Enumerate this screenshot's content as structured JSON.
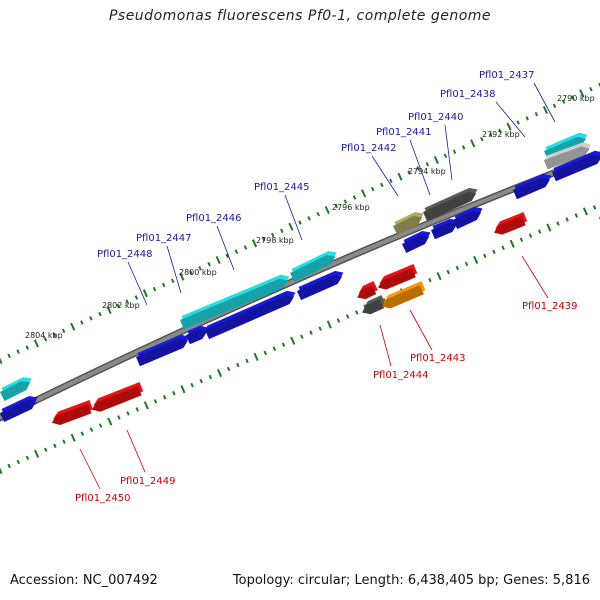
{
  "header": {
    "title": "Pseudomonas fluorescens Pf0-1, complete genome"
  },
  "footer": {
    "accession": "Accession: NC_007492",
    "summary": "Topology: circular; Length: 6,438,405 bp; Genes: 5,816"
  },
  "colors": {
    "backbone": "#8a8a8a",
    "forward_label": "#1a1aa6",
    "reverse_label": "#cc0000",
    "tick": "#1f7a1f",
    "blue": "#1a1add",
    "cyan": "#22e0e8",
    "red": "#ee1111",
    "gray": "#5a5a5a",
    "olive": "#b0ac66",
    "orange": "#ff9900",
    "lightgray": "#cfcfcf"
  },
  "kbp_labels": [
    "2790 kbp",
    "2792 kbp",
    "2794 kbp",
    "2796 kbp",
    "2798 kbp",
    "2800 kbp",
    "2802 kbp",
    "2804 kbp"
  ],
  "forward_labels": [
    "Pfl01_2437",
    "Pfl01_2438",
    "Pfl01_2440",
    "Pfl01_2441",
    "Pfl01_2442",
    "Pfl01_2445",
    "Pfl01_2446",
    "Pfl01_2447",
    "Pfl01_2448"
  ],
  "reverse_labels": [
    "Pfl01_2439",
    "Pfl01_2443",
    "Pfl01_2444",
    "Pfl01_2449",
    "Pfl01_2450"
  ]
}
